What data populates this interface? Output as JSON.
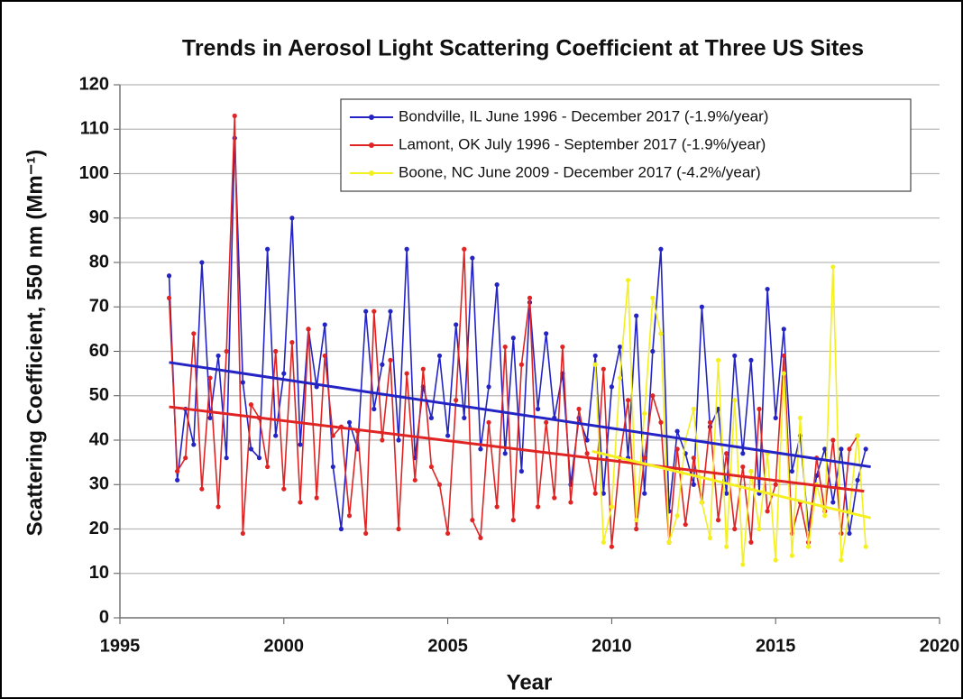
{
  "chart_data": {
    "type": "line",
    "title": "Trends in Aerosol Light Scattering Coefficient at Three US Sites",
    "x_label": "Year",
    "y_label": "Scattering Coefficient, 550 nm (Mm⁻¹)",
    "xlim": [
      1995,
      2020
    ],
    "xticks": [
      1995,
      2000,
      2005,
      2010,
      2015,
      2020
    ],
    "ylim": [
      0,
      120
    ],
    "yticks": [
      0,
      10,
      20,
      30,
      40,
      50,
      60,
      70,
      80,
      90,
      100,
      110,
      120
    ],
    "grid": true,
    "legend": "upper right",
    "series": [
      {
        "name": "Bondville, IL  June 1996 - December 2017 (-1.9%/year)",
        "color": "#2424c4",
        "x": [
          1996.5,
          1996.75,
          1997,
          1997.25,
          1997.5,
          1997.75,
          1998,
          1998.25,
          1998.5,
          1998.75,
          1999,
          1999.25,
          1999.5,
          1999.75,
          2000,
          2000.25,
          2000.5,
          2000.75,
          2001,
          2001.25,
          2001.5,
          2001.75,
          2002,
          2002.25,
          2002.5,
          2002.75,
          2003,
          2003.25,
          2003.5,
          2003.75,
          2004,
          2004.25,
          2004.5,
          2004.75,
          2005,
          2005.25,
          2005.5,
          2005.75,
          2006,
          2006.25,
          2006.5,
          2006.75,
          2007,
          2007.25,
          2007.5,
          2007.75,
          2008,
          2008.25,
          2008.5,
          2008.75,
          2009,
          2009.25,
          2009.5,
          2009.75,
          2010,
          2010.25,
          2010.5,
          2010.75,
          2011,
          2011.25,
          2011.5,
          2011.75,
          2012,
          2012.25,
          2012.5,
          2012.75,
          2013,
          2013.25,
          2013.5,
          2013.75,
          2014,
          2014.25,
          2014.5,
          2014.75,
          2015,
          2015.25,
          2015.5,
          2015.75,
          2016,
          2016.25,
          2016.5,
          2016.75,
          2017,
          2017.25,
          2017.5,
          2017.75
        ],
        "values": [
          77,
          31,
          47,
          39,
          80,
          45,
          59,
          36,
          108,
          53,
          38,
          36,
          83,
          41,
          55,
          90,
          39,
          65,
          52,
          66,
          34,
          20,
          44,
          38,
          69,
          47,
          57,
          69,
          40,
          83,
          36,
          52,
          45,
          59,
          41,
          66,
          45,
          81,
          38,
          52,
          75,
          37,
          63,
          33,
          71,
          47,
          64,
          45,
          55,
          30,
          45,
          40,
          59,
          28,
          52,
          61,
          36,
          68,
          28,
          60,
          83,
          24,
          42,
          37,
          30,
          70,
          43,
          47,
          28,
          59,
          37,
          58,
          28,
          74,
          45,
          65,
          33,
          41,
          20,
          32,
          38,
          26,
          38,
          19,
          31,
          38
        ],
        "trend": {
          "x": [
            1996.5,
            2017.9
          ],
          "y": [
            57.5,
            34
          ]
        }
      },
      {
        "name": "Lamont, OK  July 1996 - September 2017 (-1.9%/year)",
        "color": "#e02424",
        "x": [
          1996.5,
          1996.75,
          1997,
          1997.25,
          1997.5,
          1997.75,
          1998,
          1998.25,
          1998.5,
          1998.75,
          1999,
          1999.25,
          1999.5,
          1999.75,
          2000,
          2000.25,
          2000.5,
          2000.75,
          2001,
          2001.25,
          2001.5,
          2001.75,
          2002,
          2002.25,
          2002.5,
          2002.75,
          2003,
          2003.25,
          2003.5,
          2003.75,
          2004,
          2004.25,
          2004.5,
          2004.75,
          2005,
          2005.25,
          2005.5,
          2005.75,
          2006,
          2006.25,
          2006.5,
          2006.75,
          2007,
          2007.25,
          2007.5,
          2007.75,
          2008,
          2008.25,
          2008.5,
          2008.75,
          2009,
          2009.25,
          2009.5,
          2009.75,
          2010,
          2010.25,
          2010.5,
          2010.75,
          2011,
          2011.25,
          2011.5,
          2011.75,
          2012,
          2012.25,
          2012.5,
          2012.75,
          2013,
          2013.25,
          2013.5,
          2013.75,
          2014,
          2014.25,
          2014.5,
          2014.75,
          2015,
          2015.25,
          2015.5,
          2015.75,
          2016,
          2016.25,
          2016.5,
          2016.75,
          2017,
          2017.25,
          2017.5
        ],
        "values": [
          72,
          33,
          36,
          64,
          29,
          54,
          25,
          60,
          113,
          19,
          48,
          45,
          34,
          60,
          29,
          62,
          26,
          65,
          27,
          59,
          41,
          43,
          23,
          42,
          19,
          69,
          40,
          58,
          20,
          55,
          31,
          56,
          34,
          30,
          19,
          49,
          83,
          22,
          18,
          44,
          25,
          61,
          22,
          57,
          72,
          25,
          44,
          27,
          61,
          26,
          47,
          37,
          28,
          56,
          16,
          36,
          49,
          20,
          36,
          50,
          44,
          17,
          38,
          21,
          36,
          26,
          44,
          22,
          37,
          20,
          34,
          17,
          47,
          24,
          30,
          59,
          19,
          26,
          17,
          36,
          24,
          40,
          19,
          38,
          41
        ],
        "trend": {
          "x": [
            1996.5,
            2017.7
          ],
          "y": [
            47.5,
            28.5
          ]
        }
      },
      {
        "name": "Boone, NC  June 2009 - December 2017 (-4.2%/year)",
        "color": "#f4f020",
        "x": [
          2009.5,
          2009.75,
          2010,
          2010.25,
          2010.5,
          2010.75,
          2011,
          2011.25,
          2011.5,
          2011.75,
          2012,
          2012.25,
          2012.5,
          2012.75,
          2013,
          2013.25,
          2013.5,
          2013.75,
          2014,
          2014.25,
          2014.5,
          2014.75,
          2015,
          2015.25,
          2015.5,
          2015.75,
          2016,
          2016.25,
          2016.5,
          2016.75,
          2017,
          2017.25,
          2017.5,
          2017.75
        ],
        "values": [
          57,
          17,
          25,
          54,
          76,
          22,
          46,
          72,
          64,
          17,
          23,
          40,
          47,
          26,
          18,
          58,
          16,
          49,
          12,
          33,
          20,
          37,
          13,
          55,
          14,
          45,
          16,
          30,
          23,
          79,
          13,
          24,
          41,
          16
        ],
        "trend": {
          "x": [
            2009.4,
            2017.9
          ],
          "y": [
            37.5,
            22.5
          ]
        }
      }
    ]
  }
}
